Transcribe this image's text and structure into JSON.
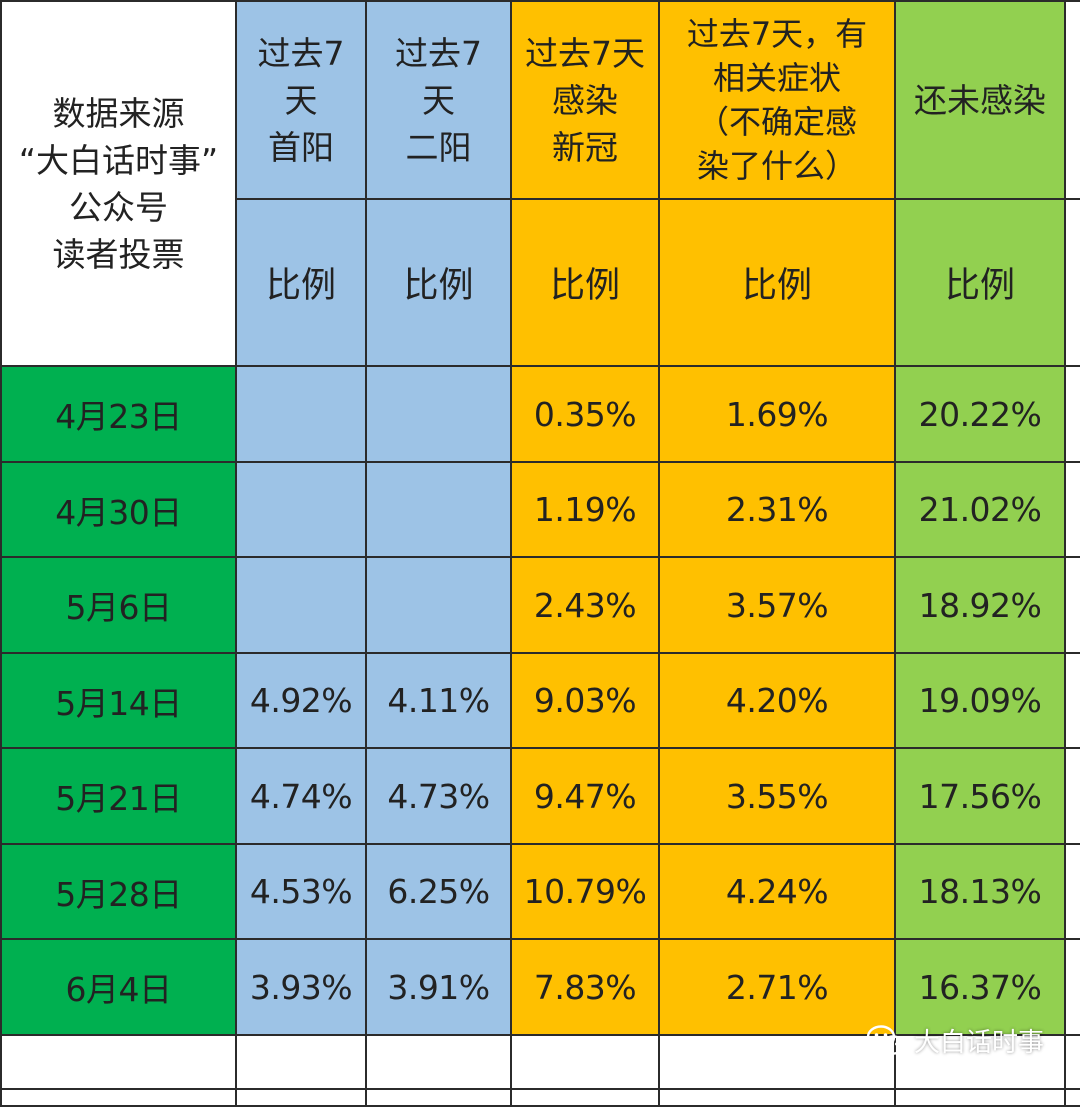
{
  "header": {
    "source_label": "数据来源\n“大白话时事”\n公众号\n读者投票",
    "columns": [
      {
        "label": "过去7\n天\n首阳",
        "sub": "比例",
        "color": "blue"
      },
      {
        "label": "过去7\n天\n二阳",
        "sub": "比例",
        "color": "blue"
      },
      {
        "label": "过去7天\n感染\n新冠",
        "sub": "比例",
        "color": "orange"
      },
      {
        "label": "过去7天，有\n相关症状\n（不确定感\n染了什么）",
        "sub": "比例",
        "color": "orange"
      },
      {
        "label": "还未感染",
        "sub": "比例",
        "color": "lgreen"
      }
    ]
  },
  "rows": [
    {
      "date": "4月23日",
      "values": [
        "",
        "",
        "0.35%",
        "1.69%",
        "20.22%"
      ]
    },
    {
      "date": "4月30日",
      "values": [
        "",
        "",
        "1.19%",
        "2.31%",
        "21.02%"
      ]
    },
    {
      "date": "5月6日",
      "values": [
        "",
        "",
        "2.43%",
        "3.57%",
        "18.92%"
      ]
    },
    {
      "date": "5月14日",
      "values": [
        "4.92%",
        "4.11%",
        "9.03%",
        "4.20%",
        "19.09%"
      ]
    },
    {
      "date": "5月21日",
      "values": [
        "4.74%",
        "4.73%",
        "9.47%",
        "3.55%",
        "17.56%"
      ]
    },
    {
      "date": "5月28日",
      "values": [
        "4.53%",
        "6.25%",
        "10.79%",
        "4.24%",
        "18.13%"
      ]
    },
    {
      "date": "6月4日",
      "values": [
        "3.93%",
        "3.91%",
        "7.83%",
        "2.71%",
        "16.37%"
      ]
    }
  ],
  "watermark": {
    "text": "大白话时事",
    "icon": "wechat-icon"
  },
  "colors": {
    "blue": "#9dc3e6",
    "orange": "#ffc000",
    "light_green": "#92d050",
    "dark_green": "#00b050",
    "grid": "#2b2b2b"
  }
}
